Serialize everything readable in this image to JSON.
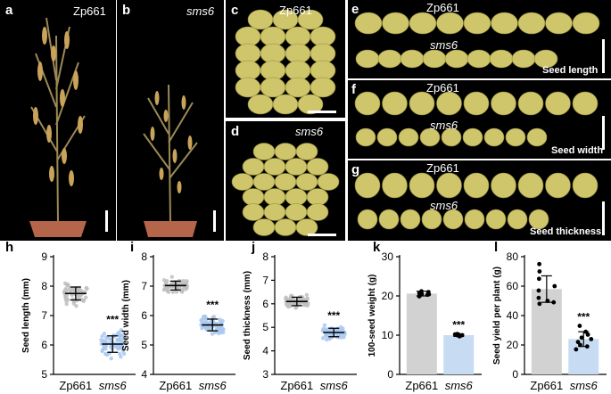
{
  "panels": {
    "a": {
      "letter": "a",
      "label": "Zp661"
    },
    "b": {
      "letter": "b",
      "label": "sms6"
    },
    "c": {
      "letter": "c",
      "label": "Zp661"
    },
    "d": {
      "letter": "d",
      "label": "sms6"
    },
    "e": {
      "letter": "e",
      "top": "Zp661",
      "bottom": "sms6",
      "caption": "Seed length"
    },
    "f": {
      "letter": "f",
      "top": "Zp661",
      "bottom": "sms6",
      "caption": "Seed width"
    },
    "g": {
      "letter": "g",
      "top": "Zp661",
      "bottom": "sms6",
      "caption": "Seed thickness"
    }
  },
  "colors": {
    "zp661_bar": "#d2d2d2",
    "sms6_bar": "#c7dcf3",
    "sms6_points": "#a9c8ee",
    "zp661_points": "#c0c0c0",
    "photo_bg": "#000000",
    "seed": "#cfc56a"
  },
  "chart_data": [
    {
      "letter": "h",
      "type": "scatter",
      "ylabel": "Seed length (mm)",
      "categories": [
        "Zp661",
        "sms6"
      ],
      "ylim": [
        5,
        9
      ],
      "yticks": [
        5,
        6,
        7,
        8,
        9
      ],
      "mean": [
        7.75,
        6.03
      ],
      "sd": [
        0.22,
        0.28
      ],
      "sig": "***"
    },
    {
      "letter": "i",
      "type": "scatter",
      "ylabel": "Seed width (mm)",
      "categories": [
        "Zp661",
        "sms6"
      ],
      "ylim": [
        4,
        8
      ],
      "yticks": [
        4,
        5,
        6,
        7,
        8
      ],
      "mean": [
        7.02,
        5.68
      ],
      "sd": [
        0.15,
        0.2
      ],
      "sig": "***"
    },
    {
      "letter": "j",
      "type": "scatter",
      "ylabel": "Seed thickness (mm)",
      "categories": [
        "Zp661",
        "sms6"
      ],
      "ylim": [
        3,
        8
      ],
      "yticks": [
        3,
        4,
        5,
        6,
        7,
        8
      ],
      "mean": [
        6.1,
        4.78
      ],
      "sd": [
        0.18,
        0.18
      ],
      "sig": "***"
    },
    {
      "letter": "k",
      "type": "bar",
      "ylabel": "100-seed weight (g)",
      "categories": [
        "Zp661",
        "sms6"
      ],
      "ylim": [
        0,
        30
      ],
      "yticks": [
        0,
        10,
        20,
        30
      ],
      "values": [
        20.6,
        10.0
      ],
      "sd": [
        0.6,
        0.3
      ],
      "sig": "***",
      "points": [
        [
          20.0,
          20.3,
          20.5,
          20.7,
          21.0,
          21.2,
          20.4,
          20.8,
          19.9
        ],
        [
          9.8,
          10.0,
          10.1,
          9.9,
          10.2,
          10.0,
          9.7,
          10.1,
          10.3
        ]
      ]
    },
    {
      "letter": "l",
      "type": "bar",
      "ylabel": "Seed yield per plant (g)",
      "categories": [
        "Zp661",
        "sms6"
      ],
      "ylim": [
        0,
        80
      ],
      "yticks": [
        0,
        20,
        40,
        60,
        80
      ],
      "values": [
        58,
        24
      ],
      "sd": [
        9,
        5
      ],
      "sig": "***",
      "points": [
        [
          75,
          70,
          65,
          57,
          52,
          50,
          49,
          48,
          60
        ],
        [
          33,
          29,
          27,
          25,
          22,
          20,
          19,
          17,
          24
        ]
      ]
    }
  ]
}
